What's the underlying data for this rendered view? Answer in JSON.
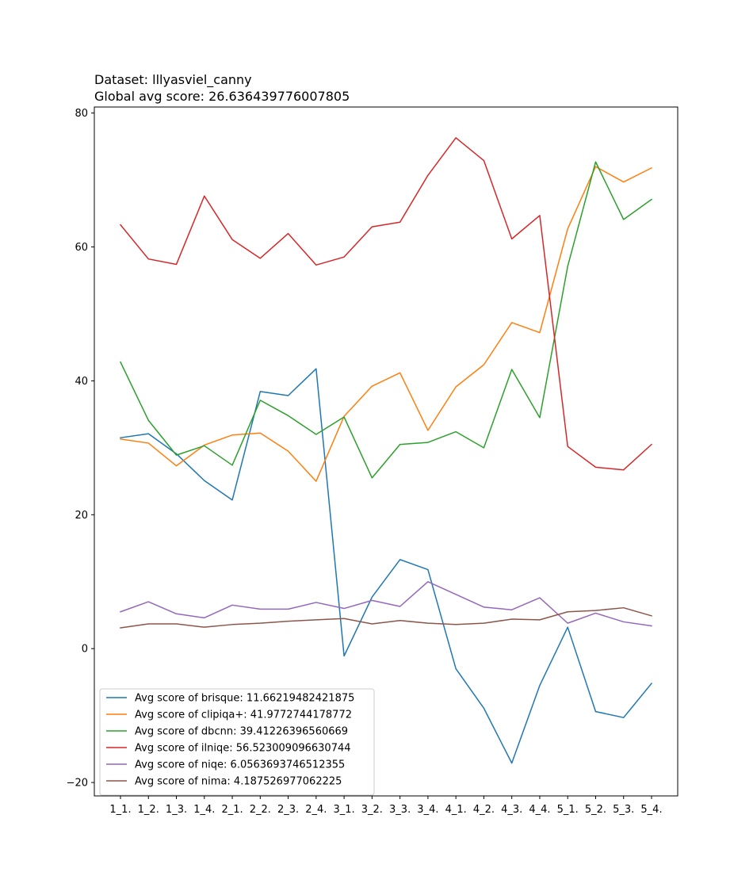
{
  "chart_data": {
    "type": "line",
    "title_lines": [
      "Dataset: lllyasviel_canny",
      "Global avg score: 26.636439776007805"
    ],
    "xlabel": "",
    "ylabel": "",
    "categories": [
      "1_1.",
      "1_2.",
      "1_3.",
      "1_4.",
      "2_1.",
      "2_2.",
      "2_3.",
      "2_4.",
      "3_1.",
      "3_2.",
      "3_3.",
      "3_4.",
      "4_1.",
      "4_2.",
      "4_3.",
      "4_4.",
      "5_1.",
      "5_2.",
      "5_3.",
      "5_4."
    ],
    "ylim": [
      -22,
      80.9
    ],
    "yticks": [
      -20,
      0,
      20,
      40,
      60,
      80
    ],
    "legend_position": "lower-left",
    "series": [
      {
        "name": "Avg score of brisque: 11.66219482421875",
        "color": "#1f77b4",
        "values": [
          31.5,
          32.1,
          29.1,
          25.1,
          22.2,
          38.4,
          37.8,
          41.8,
          -1.1,
          7.7,
          13.3,
          11.8,
          -3.0,
          -8.9,
          -17.1,
          -5.5,
          3.2,
          -9.4,
          -10.3,
          -5.2
        ]
      },
      {
        "name": "Avg score of clipiqa+: 41.9772744178772",
        "color": "#ff7f0e",
        "values": [
          31.3,
          30.7,
          27.3,
          30.4,
          31.9,
          32.2,
          29.5,
          25.0,
          34.7,
          39.2,
          41.2,
          32.6,
          39.1,
          42.4,
          48.7,
          47.2,
          62.7,
          72.0,
          69.7,
          71.8
        ]
      },
      {
        "name": "Avg score of dbcnn: 39.41226396560669",
        "color": "#2ca02c",
        "values": [
          42.8,
          34.1,
          28.9,
          30.3,
          27.4,
          37.1,
          34.8,
          32.0,
          34.6,
          25.5,
          30.5,
          30.8,
          32.4,
          30.0,
          41.7,
          34.5,
          57.1,
          72.7,
          64.1,
          67.1
        ]
      },
      {
        "name": "Avg score of ilniqe: 56.523009096630744",
        "color": "#d62728",
        "values": [
          63.3,
          58.2,
          57.4,
          67.6,
          61.1,
          58.3,
          62.0,
          57.3,
          58.5,
          63.0,
          63.7,
          70.7,
          76.3,
          72.9,
          61.2,
          64.7,
          30.2,
          27.1,
          26.7,
          30.5
        ]
      },
      {
        "name": "Avg score of niqe: 6.0563693746512355",
        "color": "#9467bd",
        "values": [
          5.5,
          7.0,
          5.2,
          4.6,
          6.5,
          5.9,
          5.9,
          6.9,
          6.0,
          7.2,
          6.3,
          10.0,
          8.1,
          6.2,
          5.8,
          7.6,
          3.8,
          5.3,
          4.0,
          3.4
        ]
      },
      {
        "name": "Avg score of nima: 4.187526977062225",
        "color": "#8c564b",
        "values": [
          3.1,
          3.7,
          3.7,
          3.2,
          3.6,
          3.8,
          4.1,
          4.3,
          4.5,
          3.7,
          4.2,
          3.8,
          3.6,
          3.8,
          4.4,
          4.3,
          5.5,
          5.7,
          6.1,
          4.9
        ]
      }
    ]
  }
}
